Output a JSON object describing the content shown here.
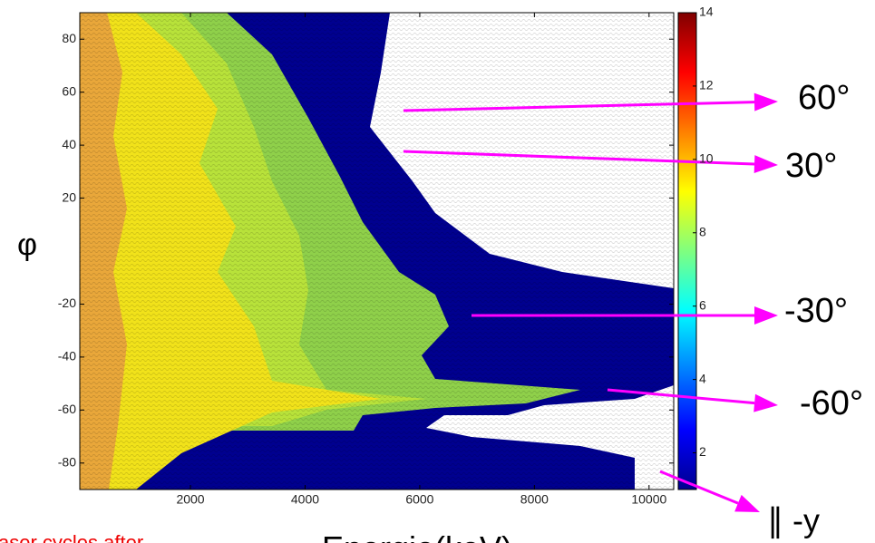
{
  "chart_data": {
    "type": "heatmap",
    "x_label": "Energie(keV)",
    "y_label": "φ",
    "xlim": [
      70,
      10430
    ],
    "xticks": [
      2000,
      4000,
      6000,
      8000,
      10000
    ],
    "ylim": [
      -90,
      90
    ],
    "yticks": [
      -80,
      -60,
      -40,
      -20,
      20,
      40,
      60,
      80
    ],
    "colorbar_lim": [
      1,
      14
    ],
    "colorbar_ticks": [
      2,
      4,
      6,
      8,
      10,
      12,
      14
    ],
    "annotations": [
      "60°",
      "30°",
      "-30°",
      "-60°",
      "∥ -y"
    ],
    "caption": "aser cycles after"
  }
}
